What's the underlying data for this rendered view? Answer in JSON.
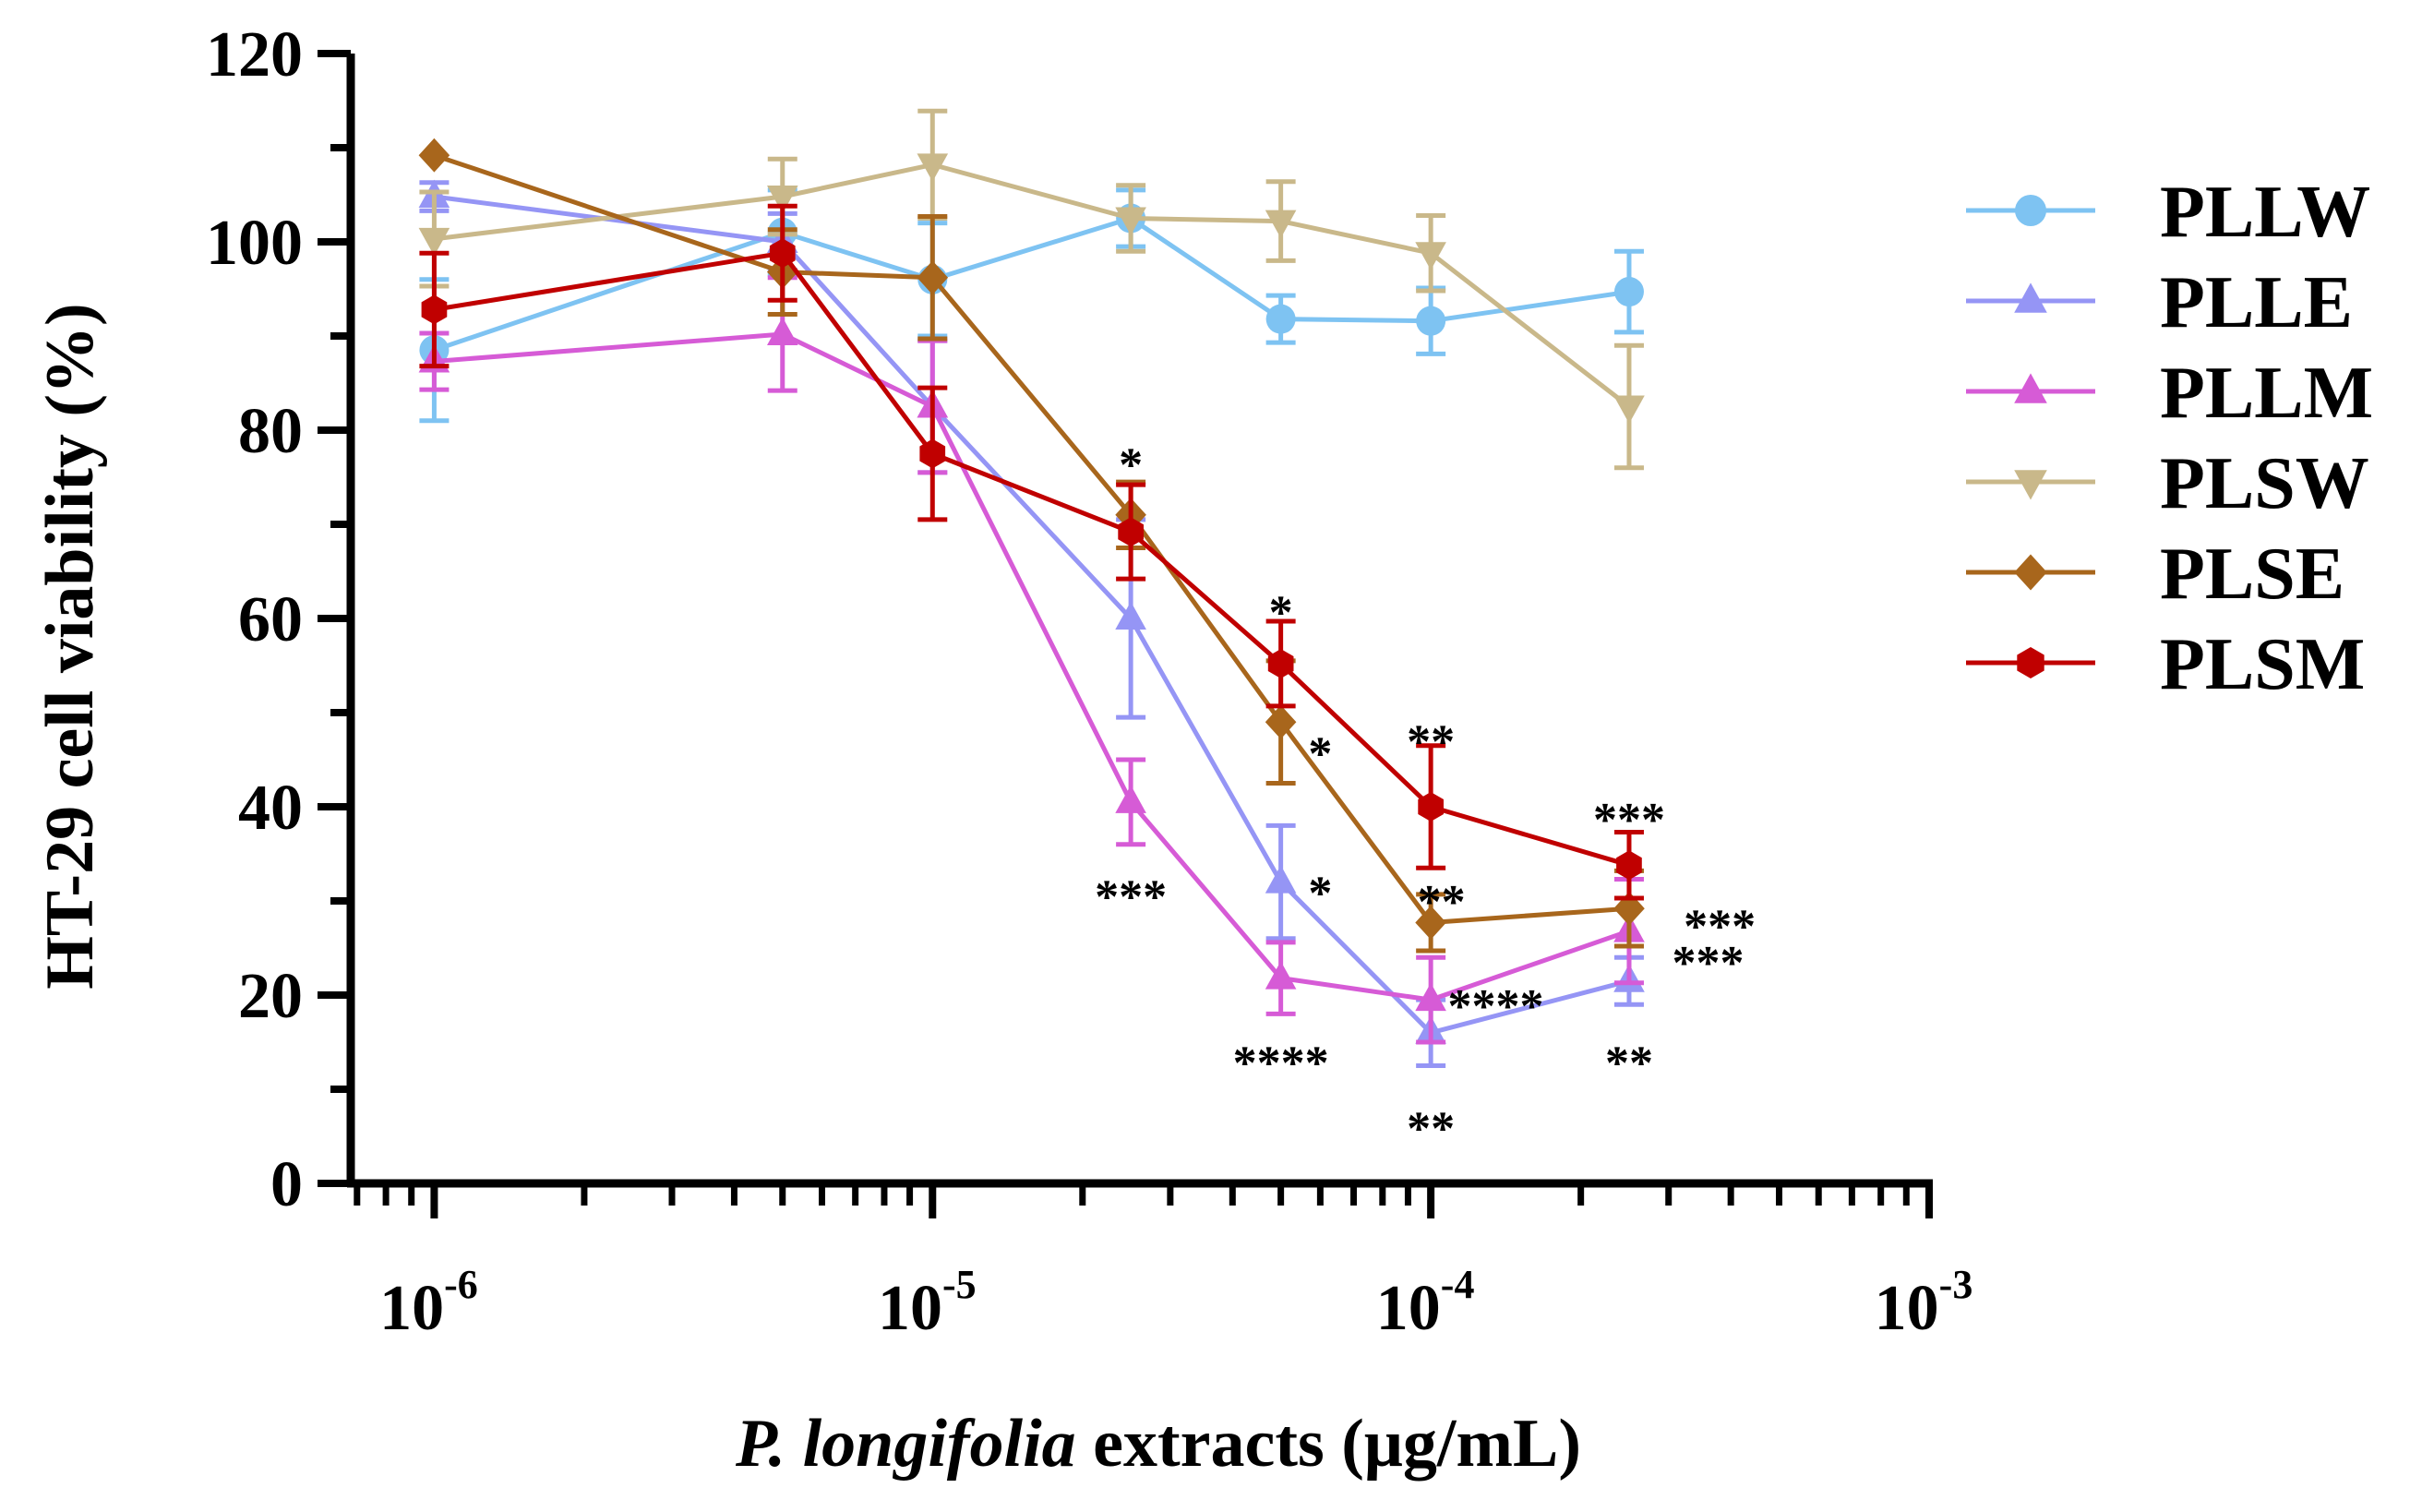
{
  "chart_data": {
    "type": "line",
    "title": "",
    "xlabel_italic": "P. longifolia",
    "xlabel_rest": " extracts (μg/mL)",
    "ylabel": "HT-29 cell viability (%)",
    "xscale": "log",
    "xlim": [
      6.8e-07,
      0.001
    ],
    "ylim": [
      0,
      120
    ],
    "yticks": [
      {
        "value": 0,
        "label": "0"
      },
      {
        "value": 20,
        "label": "20"
      },
      {
        "value": 40,
        "label": "40"
      },
      {
        "value": 60,
        "label": "60"
      },
      {
        "value": 80,
        "label": "80"
      },
      {
        "value": 100,
        "label": "100"
      },
      {
        "value": 120,
        "label": "120"
      }
    ],
    "xticks": [
      {
        "value": 1e-06,
        "base": "10",
        "exp": "-6"
      },
      {
        "value": 1e-05,
        "base": "10",
        "exp": "-5"
      },
      {
        "value": 0.0001,
        "base": "10",
        "exp": "-4"
      },
      {
        "value": 0.001,
        "base": "10",
        "exp": "-3"
      }
    ],
    "x": [
      1e-06,
      5e-06,
      1e-05,
      2.5e-05,
      5e-05,
      0.0001,
      0.00025
    ],
    "legend_position": "right",
    "series": [
      {
        "name": "PLLW",
        "color": "#7EC3F2",
        "marker": "circle",
        "values": [
          88.5,
          101,
          96,
          102.5,
          91.8,
          91.6,
          94.7
        ],
        "errors": [
          7.5,
          4.5,
          6.0,
          3.0,
          2.5,
          3.5,
          4.3
        ]
      },
      {
        "name": "PLLE",
        "color": "#9595F5",
        "marker": "triangle-up",
        "values": [
          104.8,
          100,
          82.5,
          60,
          32,
          16,
          21.5
        ],
        "errors": [
          1.5,
          3.0,
          7.0,
          10.5,
          6.0,
          3.5,
          2.5
        ]
      },
      {
        "name": "PLLM",
        "color": "#D65BD6",
        "marker": "triangle-up",
        "values": [
          87.3,
          90.2,
          82.5,
          40.5,
          21.8,
          19.5,
          26.8
        ],
        "errors": [
          3.0,
          6.0,
          7.0,
          4.5,
          3.8,
          4.5,
          5.5
        ]
      },
      {
        "name": "PLSW",
        "color": "#C9B88A",
        "marker": "triangle-down",
        "values": [
          100.3,
          104.8,
          108.2,
          102.5,
          102.2,
          98.8,
          82.5
        ],
        "errors": [
          5.0,
          4.0,
          5.7,
          3.5,
          4.2,
          4.0,
          6.5
        ]
      },
      {
        "name": "PLSE",
        "color": "#A8661C",
        "marker": "diamond",
        "values": [
          109.2,
          96.8,
          96.2,
          71,
          49,
          27.7,
          29.2
        ],
        "errors": [
          0,
          4.5,
          6.5,
          3.5,
          6.5,
          3.0,
          4.0
        ]
      },
      {
        "name": "PLSM",
        "color": "#C00000",
        "marker": "hexagon",
        "values": [
          92.8,
          98.8,
          77.5,
          69.2,
          55.2,
          40,
          33.8
        ],
        "errors": [
          6.0,
          5.0,
          7.0,
          5.0,
          4.5,
          6.5,
          3.5
        ]
      }
    ],
    "annotations": [
      {
        "text": "*",
        "x": 2.5e-05,
        "y": 77.2
      },
      {
        "text": "***",
        "x": 2.5e-05,
        "y": 31.3
      },
      {
        "text": "*",
        "x": 5e-05,
        "y": 61.5
      },
      {
        "text": "*",
        "x": 6e-05,
        "y": 46.5
      },
      {
        "text": "*",
        "x": 6e-05,
        "y": 31.7
      },
      {
        "text": "****",
        "x": 5e-05,
        "y": 13.7
      },
      {
        "text": "**",
        "x": 0.0001,
        "y": 47.8
      },
      {
        "text": "**",
        "x": 0.000105,
        "y": 30.8
      },
      {
        "text": "****",
        "x": 0.000135,
        "y": 19.7
      },
      {
        "text": "**",
        "x": 0.0001,
        "y": 6.7
      },
      {
        "text": "***",
        "x": 0.00025,
        "y": 39.5
      },
      {
        "text": "***",
        "x": 0.00038,
        "y": 28.2
      },
      {
        "text": "***",
        "x": 0.00036,
        "y": 24.3
      },
      {
        "text": "**",
        "x": 0.00025,
        "y": 13.7
      }
    ]
  }
}
